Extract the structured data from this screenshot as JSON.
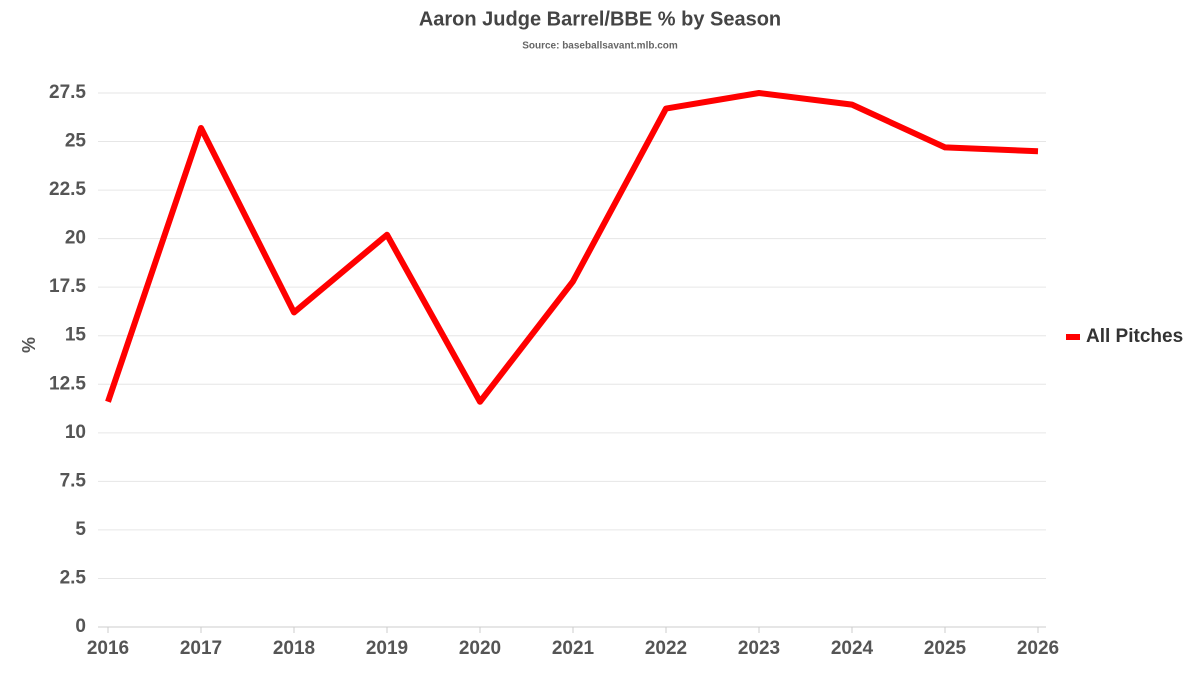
{
  "chart_data": {
    "type": "line",
    "title": "Aaron Judge Barrel/BBE % by Season",
    "subtitle": "Source: baseballsavant.mlb.com",
    "y_label": "%",
    "x": [
      2016,
      2017,
      2018,
      2019,
      2020,
      2021,
      2022,
      2023,
      2024,
      2025,
      2026
    ],
    "series": [
      {
        "name": "All Pitches",
        "color": "#ff0000",
        "values": [
          11.6,
          25.7,
          16.2,
          20.2,
          11.6,
          17.8,
          26.7,
          27.5,
          26.9,
          24.7,
          24.5
        ]
      }
    ],
    "xlim": [
      2016,
      2026
    ],
    "xticks": [
      2016,
      2017,
      2018,
      2019,
      2020,
      2021,
      2022,
      2023,
      2024,
      2025,
      2026
    ],
    "ylim": [
      0,
      27.5
    ],
    "yticks": [
      0,
      2.5,
      5,
      7.5,
      10,
      12.5,
      15,
      17.5,
      20,
      22.5,
      25,
      27.5
    ],
    "grid": true,
    "legend": "right"
  }
}
